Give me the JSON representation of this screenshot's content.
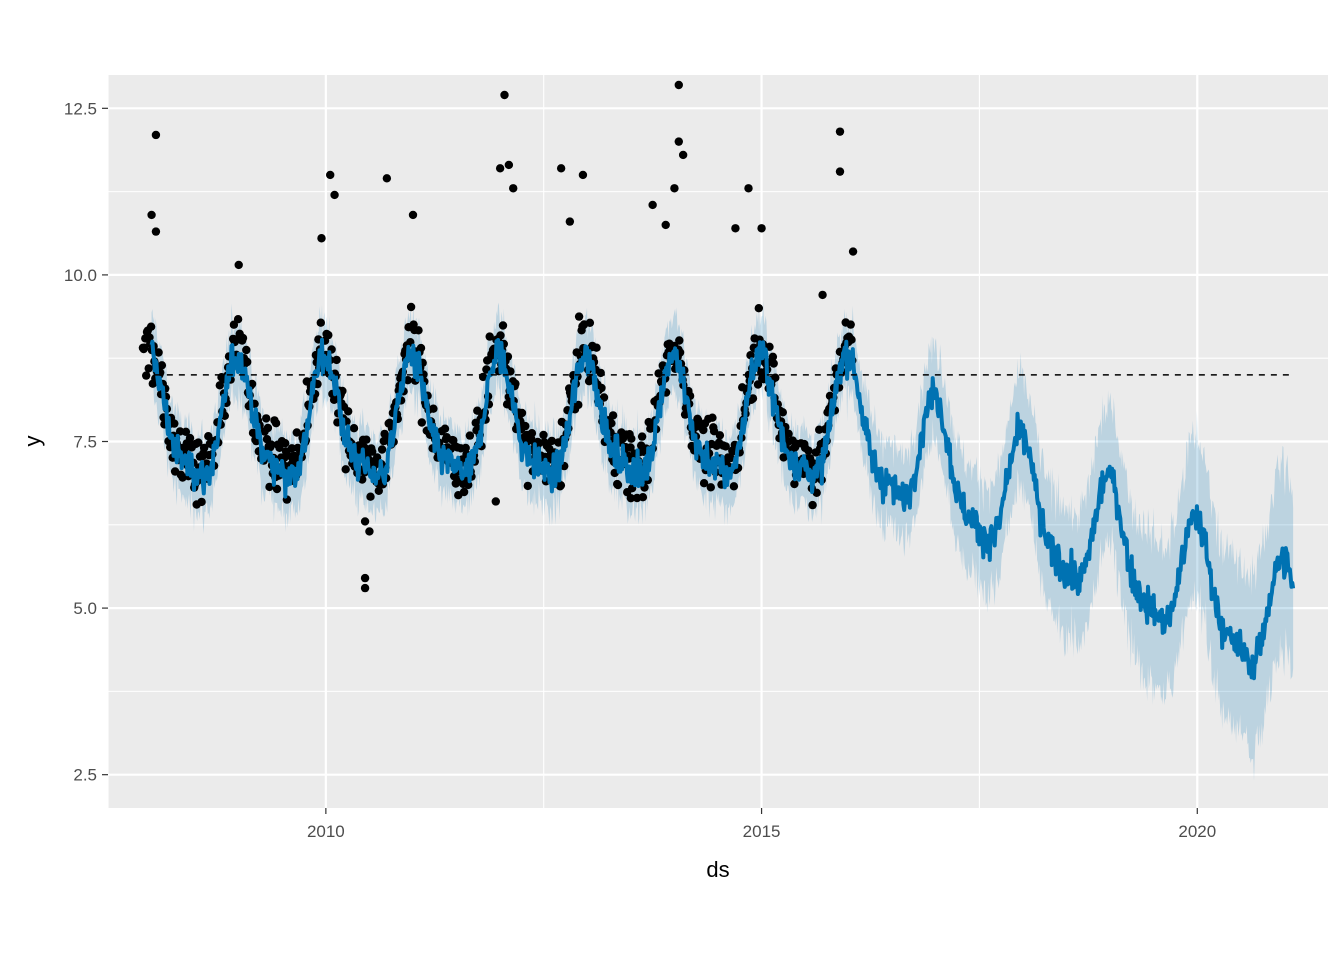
{
  "chart_data": {
    "type": "line",
    "title": "",
    "xlabel": "ds",
    "ylabel": "y",
    "xlim": [
      2007.5,
      2021.5
    ],
    "ylim": [
      2.0,
      13.0
    ],
    "x_ticks": [
      2010,
      2015,
      2020
    ],
    "x_tick_labels": [
      "2010",
      "2015",
      "2020"
    ],
    "y_ticks": [
      2.5,
      5.0,
      7.5,
      10.0,
      12.5
    ],
    "y_tick_labels": [
      "2.5",
      "5.0",
      "7.5",
      "10.0",
      "12.5"
    ],
    "grid": true,
    "legend": "none",
    "colors": {
      "panel": "#ebebeb",
      "grid": "#ffffff",
      "forecast": "#0072b2",
      "interval": "#0072b2",
      "observed": "#000000",
      "cap": "#000000"
    },
    "cap_line": {
      "y": 8.5,
      "x_start": 2007.9,
      "x_end": 2021.1,
      "style": "dashed"
    },
    "observed": {
      "x_start": 2007.9,
      "x_end": 2016.05,
      "marker": "filled-circle",
      "outliers": [
        [
          2008.05,
          12.1
        ],
        [
          2008.0,
          10.9
        ],
        [
          2008.05,
          10.65
        ],
        [
          2009.0,
          10.15
        ],
        [
          2010.05,
          11.5
        ],
        [
          2010.1,
          11.2
        ],
        [
          2009.95,
          10.55
        ],
        [
          2010.45,
          5.45
        ],
        [
          2010.45,
          5.3
        ],
        [
          2010.45,
          6.3
        ],
        [
          2010.5,
          6.15
        ],
        [
          2010.7,
          11.45
        ],
        [
          2011.0,
          10.9
        ],
        [
          2012.05,
          12.7
        ],
        [
          2012.0,
          11.6
        ],
        [
          2012.1,
          11.65
        ],
        [
          2012.15,
          11.3
        ],
        [
          2011.95,
          6.6
        ],
        [
          2012.7,
          11.6
        ],
        [
          2012.95,
          11.5
        ],
        [
          2012.8,
          10.8
        ],
        [
          2014.05,
          12.85
        ],
        [
          2014.05,
          12.0
        ],
        [
          2014.0,
          11.3
        ],
        [
          2014.1,
          11.8
        ],
        [
          2013.75,
          11.05
        ],
        [
          2013.9,
          10.75
        ],
        [
          2013.5,
          6.65
        ],
        [
          2014.85,
          11.3
        ],
        [
          2014.7,
          10.7
        ],
        [
          2015.0,
          10.7
        ],
        [
          2015.9,
          12.15
        ],
        [
          2015.9,
          11.55
        ],
        [
          2016.05,
          10.35
        ],
        [
          2015.7,
          9.7
        ]
      ]
    },
    "forecast": {
      "x_end": 2021.1,
      "trend_points": [
        [
          2008.0,
          7.7
        ],
        [
          2016.0,
          7.72
        ],
        [
          2021.1,
          4.6
        ]
      ],
      "seasonal_peak_month": "January",
      "seasonal_trough_month": "July",
      "amplitude": 1.0,
      "interval_halfwidth_history": 0.6,
      "interval_halfwidth_end": 1.5
    }
  }
}
